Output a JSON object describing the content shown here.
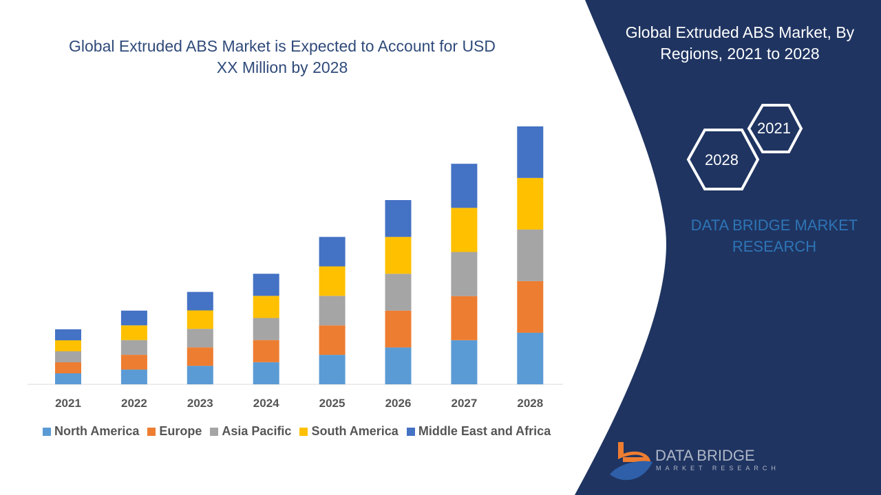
{
  "title": "Global Extruded ABS Market is Expected to Account for USD XX Million by 2028",
  "side_panel": {
    "title": "Global Extruded ABS Market, By Regions, 2021 to 2028",
    "hex_labels": [
      "2021",
      "2028"
    ],
    "brand": "DATA BRIDGE MARKET RESEARCH",
    "logo_text": "DATA BRIDGE",
    "logo_subtext": "MARKET RESEARCH",
    "panel_color": "#1f3461"
  },
  "chart_data": {
    "type": "stacked-bar",
    "title": "Global Extruded ABS Market is Expected to Account for USD XX Million by 2028",
    "categories": [
      "2021",
      "2022",
      "2023",
      "2024",
      "2025",
      "2026",
      "2027",
      "2028"
    ],
    "series": [
      {
        "name": "North America",
        "color": "#5b9bd5",
        "values": [
          1.0,
          1.34,
          1.68,
          2.01,
          2.68,
          3.35,
          4.01,
          4.69
        ]
      },
      {
        "name": "Europe",
        "color": "#ed7d31",
        "values": [
          1.0,
          1.34,
          1.68,
          2.01,
          2.68,
          3.35,
          4.01,
          4.69
        ]
      },
      {
        "name": "Asia Pacific",
        "color": "#a5a5a5",
        "values": [
          1.0,
          1.34,
          1.68,
          2.01,
          2.68,
          3.35,
          4.01,
          4.69
        ]
      },
      {
        "name": "South America",
        "color": "#ffc000",
        "values": [
          1.0,
          1.34,
          1.68,
          2.01,
          2.68,
          3.35,
          4.01,
          4.69
        ]
      },
      {
        "name": "Middle East and Africa",
        "color": "#4472c4",
        "values": [
          1.0,
          1.34,
          1.68,
          2.01,
          2.68,
          3.35,
          4.01,
          4.69
        ]
      }
    ],
    "legend": "bottom",
    "grid": false,
    "y_axis_shown": false
  }
}
